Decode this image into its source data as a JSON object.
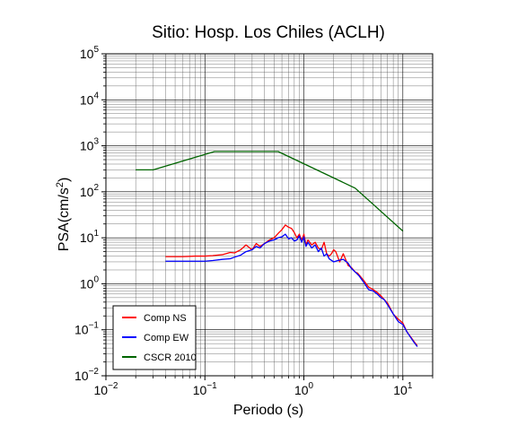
{
  "chart_data": {
    "type": "line",
    "title": "Sitio: Hosp. Los Chiles (ACLH)",
    "xlabel": "Periodo (s)",
    "ylabel_main": "PSA(cm/s",
    "ylabel_sup": "2",
    "ylabel_close": ")",
    "x_scale": "log",
    "y_scale": "log",
    "xlim": [
      0.01,
      20
    ],
    "ylim": [
      0.01,
      100000
    ],
    "grid": true,
    "legend_position": "bottom-left",
    "x_ticks": [
      {
        "value": 0.01,
        "base": "10",
        "exp": "−2"
      },
      {
        "value": 0.1,
        "base": "10",
        "exp": "−1"
      },
      {
        "value": 1,
        "base": "10",
        "exp": "0"
      },
      {
        "value": 10,
        "base": "10",
        "exp": "1"
      }
    ],
    "y_ticks": [
      {
        "value": 0.01,
        "base": "10",
        "exp": "−2"
      },
      {
        "value": 0.1,
        "base": "10",
        "exp": "−1"
      },
      {
        "value": 1,
        "base": "10",
        "exp": "0"
      },
      {
        "value": 10,
        "base": "10",
        "exp": "1"
      },
      {
        "value": 100,
        "base": "10",
        "exp": "2"
      },
      {
        "value": 1000,
        "base": "10",
        "exp": "3"
      },
      {
        "value": 10000,
        "base": "10",
        "exp": "4"
      },
      {
        "value": 100000,
        "base": "10",
        "exp": "5"
      }
    ],
    "series": [
      {
        "name": "Comp NS",
        "color": "#ff0000",
        "points": [
          [
            0.04,
            3.9
          ],
          [
            0.06,
            3.9
          ],
          [
            0.08,
            4.0
          ],
          [
            0.1,
            4.0
          ],
          [
            0.12,
            4.1
          ],
          [
            0.15,
            4.3
          ],
          [
            0.18,
            4.8
          ],
          [
            0.2,
            4.7
          ],
          [
            0.23,
            5.5
          ],
          [
            0.26,
            7.0
          ],
          [
            0.3,
            5.5
          ],
          [
            0.33,
            7.5
          ],
          [
            0.36,
            6.5
          ],
          [
            0.4,
            7.5
          ],
          [
            0.45,
            9.0
          ],
          [
            0.5,
            10.0
          ],
          [
            0.56,
            13.0
          ],
          [
            0.6,
            15.0
          ],
          [
            0.65,
            19.0
          ],
          [
            0.7,
            17.0
          ],
          [
            0.75,
            16.0
          ],
          [
            0.8,
            13.0
          ],
          [
            0.85,
            10.0
          ],
          [
            0.9,
            12.0
          ],
          [
            0.95,
            8.5
          ],
          [
            1.0,
            12.0
          ],
          [
            1.05,
            7.0
          ],
          [
            1.1,
            9.0
          ],
          [
            1.2,
            7.0
          ],
          [
            1.3,
            8.0
          ],
          [
            1.4,
            6.0
          ],
          [
            1.5,
            5.5
          ],
          [
            1.6,
            8.0
          ],
          [
            1.7,
            4.5
          ],
          [
            1.8,
            4.0
          ],
          [
            1.9,
            4.5
          ],
          [
            2.0,
            5.5
          ],
          [
            2.1,
            5.0
          ],
          [
            2.3,
            3.0
          ],
          [
            2.5,
            4.5
          ],
          [
            2.8,
            2.5
          ],
          [
            3.0,
            2.3
          ],
          [
            3.3,
            1.8
          ],
          [
            3.5,
            1.7
          ],
          [
            4.0,
            1.2
          ],
          [
            4.5,
            0.85
          ],
          [
            5.0,
            0.75
          ],
          [
            5.5,
            0.65
          ],
          [
            6.0,
            0.55
          ],
          [
            6.5,
            0.45
          ],
          [
            7.0,
            0.38
          ],
          [
            8.0,
            0.22
          ],
          [
            9.0,
            0.17
          ],
          [
            10.0,
            0.14
          ],
          [
            11.0,
            0.09
          ],
          [
            12.0,
            0.07
          ],
          [
            13.0,
            0.055
          ],
          [
            14.0,
            0.045
          ]
        ]
      },
      {
        "name": "Comp EW",
        "color": "#0000ff",
        "points": [
          [
            0.04,
            3.1
          ],
          [
            0.06,
            3.1
          ],
          [
            0.08,
            3.1
          ],
          [
            0.1,
            3.1
          ],
          [
            0.12,
            3.2
          ],
          [
            0.15,
            3.4
          ],
          [
            0.18,
            3.5
          ],
          [
            0.2,
            3.8
          ],
          [
            0.23,
            4.2
          ],
          [
            0.26,
            5.0
          ],
          [
            0.3,
            5.5
          ],
          [
            0.33,
            6.5
          ],
          [
            0.36,
            6.0
          ],
          [
            0.4,
            7.5
          ],
          [
            0.45,
            8.5
          ],
          [
            0.5,
            9.0
          ],
          [
            0.55,
            10.0
          ],
          [
            0.6,
            10.5
          ],
          [
            0.65,
            12.0
          ],
          [
            0.7,
            9.5
          ],
          [
            0.75,
            10.0
          ],
          [
            0.8,
            8.5
          ],
          [
            0.85,
            9.0
          ],
          [
            0.9,
            11.0
          ],
          [
            0.95,
            8.0
          ],
          [
            1.0,
            10.5
          ],
          [
            1.05,
            6.5
          ],
          [
            1.1,
            8.0
          ],
          [
            1.2,
            6.0
          ],
          [
            1.3,
            7.0
          ],
          [
            1.4,
            5.0
          ],
          [
            1.5,
            6.0
          ],
          [
            1.6,
            4.0
          ],
          [
            1.7,
            4.5
          ],
          [
            1.8,
            3.5
          ],
          [
            2.0,
            3.0
          ],
          [
            2.2,
            3.2
          ],
          [
            2.5,
            3.4
          ],
          [
            2.8,
            2.8
          ],
          [
            3.0,
            2.2
          ],
          [
            3.3,
            1.8
          ],
          [
            3.6,
            1.5
          ],
          [
            4.0,
            1.1
          ],
          [
            4.5,
            0.75
          ],
          [
            5.0,
            0.7
          ],
          [
            5.5,
            0.6
          ],
          [
            6.0,
            0.5
          ],
          [
            6.5,
            0.45
          ],
          [
            7.0,
            0.35
          ],
          [
            8.0,
            0.22
          ],
          [
            9.0,
            0.15
          ],
          [
            10.0,
            0.13
          ],
          [
            11.0,
            0.09
          ],
          [
            12.0,
            0.068
          ],
          [
            13.0,
            0.053
          ],
          [
            14.0,
            0.043
          ]
        ]
      },
      {
        "name": "CSCR 2010",
        "color": "#006400",
        "points": [
          [
            0.02,
            300
          ],
          [
            0.03,
            300
          ],
          [
            0.125,
            750
          ],
          [
            0.55,
            750
          ],
          [
            3.3,
            120
          ],
          [
            10,
            14
          ]
        ]
      }
    ]
  }
}
